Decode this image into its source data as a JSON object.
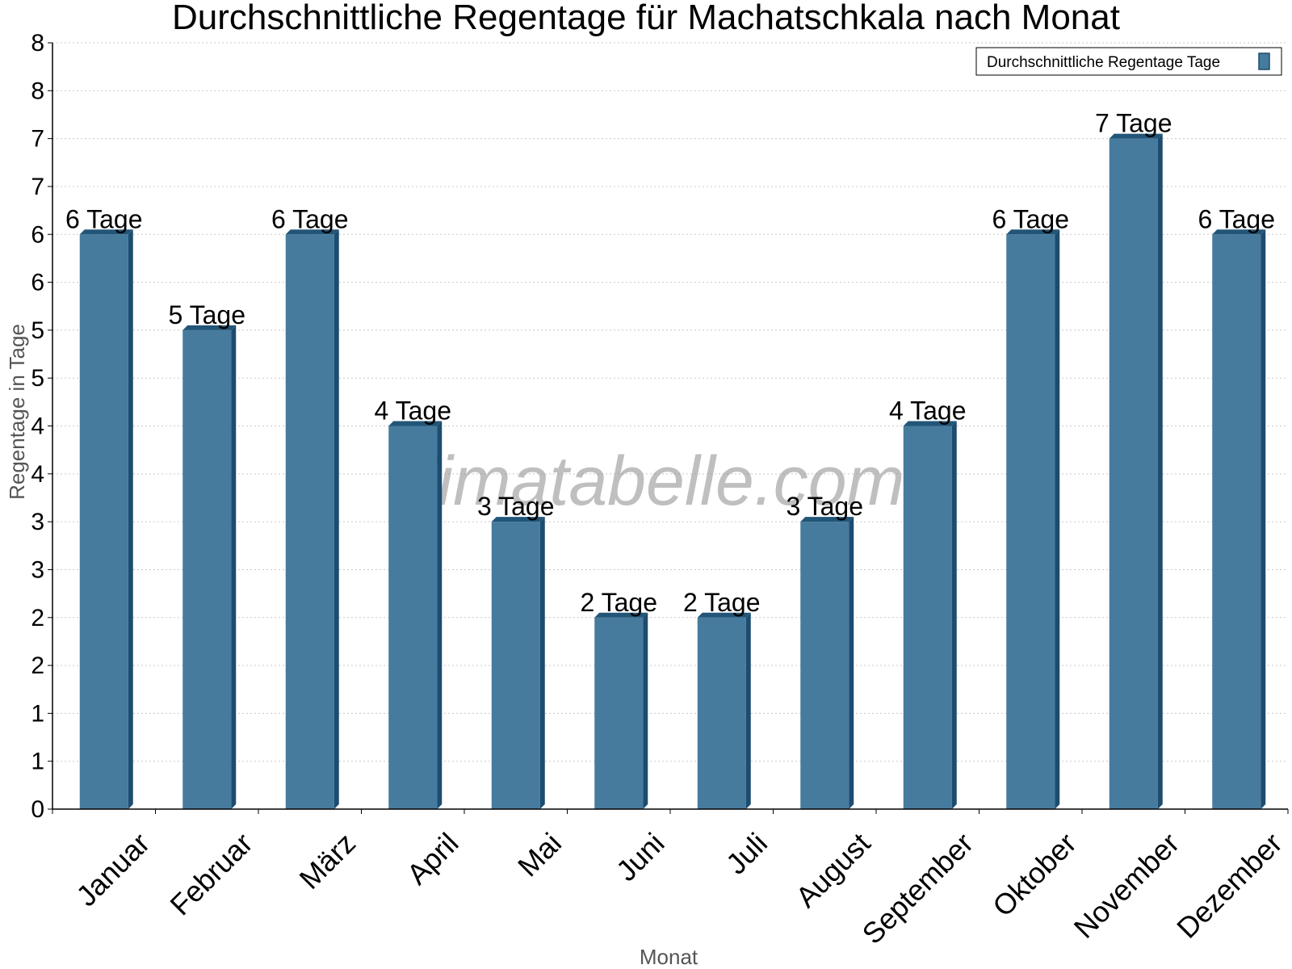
{
  "watermark": "klimatabelle.com",
  "colors": {
    "bar_front": "#467B9E",
    "bar_side": "#1C4C6E",
    "bar_top": "#225577",
    "grid": "#c8c8c8"
  },
  "chart_data": {
    "type": "bar",
    "title": "Durchschnittliche Regentage für Machatschkala nach Monat",
    "xlabel": "Monat",
    "ylabel": "Regentage in Tage",
    "ylim": [
      0,
      8
    ],
    "yticks": [
      {
        "value": 0,
        "label": "0"
      },
      {
        "value": 0.5,
        "label": "1"
      },
      {
        "value": 1,
        "label": "1"
      },
      {
        "value": 1.5,
        "label": "2"
      },
      {
        "value": 2,
        "label": "2"
      },
      {
        "value": 2.5,
        "label": "3"
      },
      {
        "value": 3,
        "label": "3"
      },
      {
        "value": 3.5,
        "label": "4"
      },
      {
        "value": 4,
        "label": "4"
      },
      {
        "value": 4.5,
        "label": "5"
      },
      {
        "value": 5,
        "label": "5"
      },
      {
        "value": 5.5,
        "label": "6"
      },
      {
        "value": 6,
        "label": "6"
      },
      {
        "value": 6.5,
        "label": "7"
      },
      {
        "value": 7,
        "label": "7"
      },
      {
        "value": 7.5,
        "label": "8"
      }
    ],
    "grid": true,
    "legend_position": "top-right",
    "categories": [
      "Januar",
      "Februar",
      "März",
      "April",
      "Mai",
      "Juni",
      "Juli",
      "August",
      "September",
      "Oktober",
      "November",
      "Dezember"
    ],
    "series": [
      {
        "name": "Durchschnittliche Regentage Tage",
        "values": [
          6,
          5,
          6,
          4,
          3,
          2,
          2,
          3,
          4,
          6,
          7,
          6
        ],
        "labels": [
          "6 Tage",
          "5 Tage",
          "6 Tage",
          "4 Tage",
          "3 Tage",
          "2 Tage",
          "2 Tage",
          "3 Tage",
          "4 Tage",
          "6 Tage",
          "7 Tage",
          "6 Tage"
        ]
      }
    ]
  }
}
